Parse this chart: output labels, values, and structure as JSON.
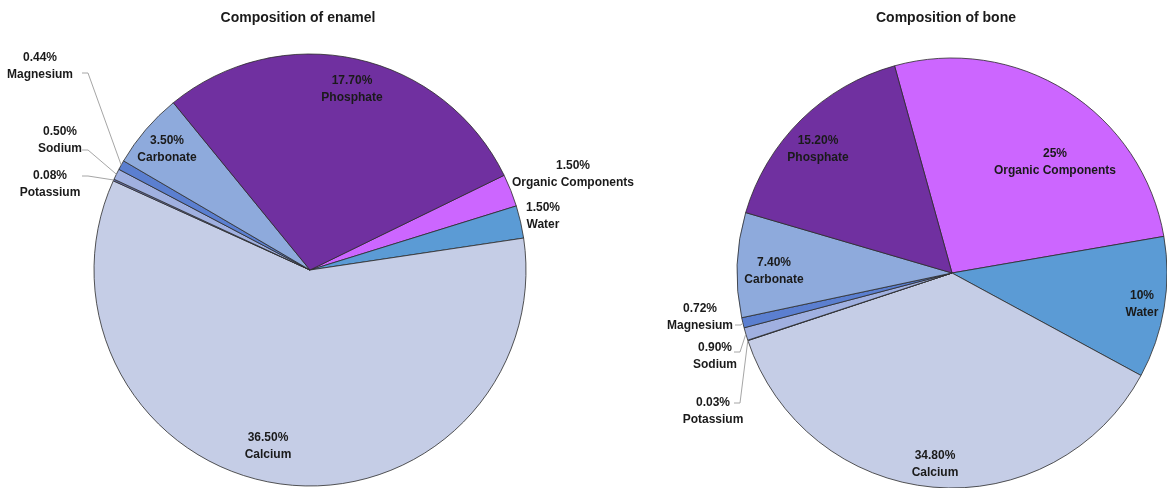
{
  "chart_data": [
    {
      "type": "pie",
      "title": "Composition of enamel",
      "categories": [
        "Organic Components",
        "Water",
        "Calcium",
        "Potassium",
        "Sodium",
        "Magnesium",
        "Carbonate",
        "Phosphate"
      ],
      "values": [
        1.5,
        1.5,
        36.5,
        0.08,
        0.5,
        0.44,
        3.5,
        17.7
      ],
      "value_labels": [
        "1.50%",
        "1.50%",
        "36.50%",
        "0.08%",
        "0.50%",
        "0.44%",
        "3.50%",
        "17.70%"
      ],
      "colors": [
        "#cc66ff",
        "#5b9bd5",
        "#c5cde6",
        "#6b74b3",
        "#a0b0e0",
        "#5b7fd0",
        "#8eaadc",
        "#7030a0"
      ]
    },
    {
      "type": "pie",
      "title": "Composition of bone",
      "categories": [
        "Organic Components",
        "Water",
        "Calcium",
        "Potassium",
        "Sodium",
        "Magnesium",
        "Carbonate",
        "Phosphate"
      ],
      "values": [
        25,
        10,
        34.8,
        0.03,
        0.9,
        0.72,
        7.4,
        15.2
      ],
      "value_labels": [
        "25%",
        "10%",
        "34.80%",
        "0.03%",
        "0.90%",
        "0.72%",
        "7.40%",
        "15.20%"
      ],
      "colors": [
        "#cc66ff",
        "#5b9bd5",
        "#c5cde6",
        "#6b74b3",
        "#a0b0e0",
        "#5b7fd0",
        "#8eaadc",
        "#7030a0"
      ]
    }
  ]
}
